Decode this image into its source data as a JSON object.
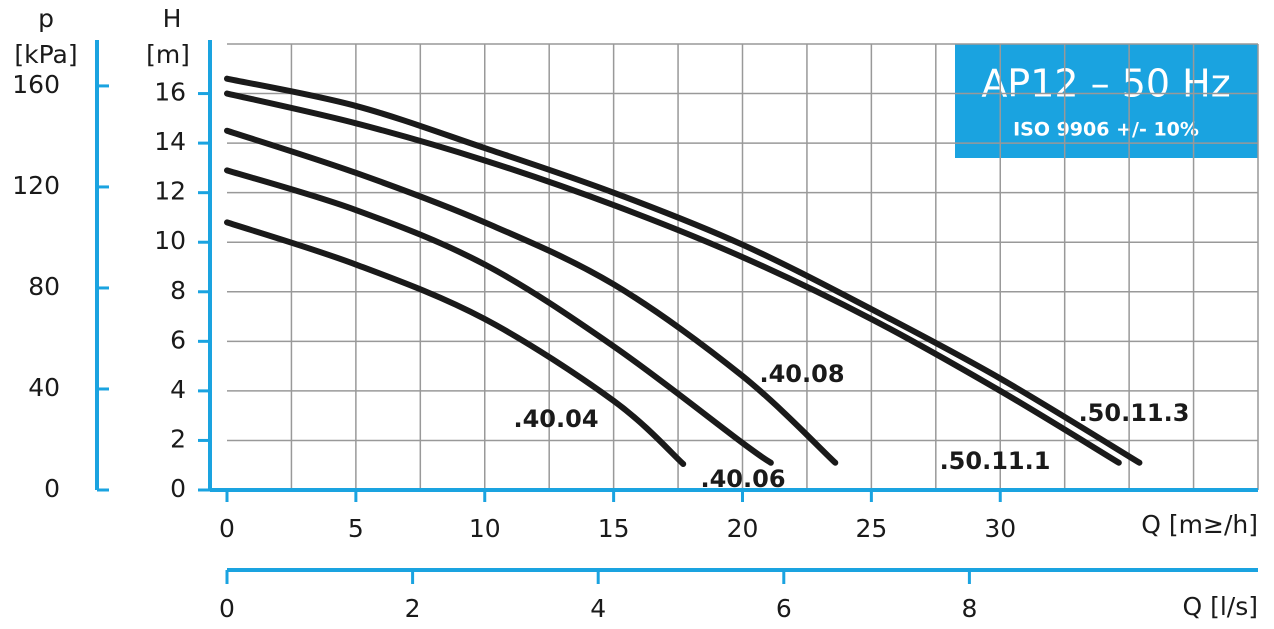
{
  "chart_data": {
    "type": "line",
    "title": "AP12 – 50 Hz",
    "subtitle": "ISO 9906 +/- 10%",
    "ylabel": [
      "H",
      "[m]"
    ],
    "y2label": [
      "p",
      "[kPa]"
    ],
    "xlabel": "Q [m≥/h]",
    "x2label": "Q [l/s]",
    "xlim": [
      0,
      40
    ],
    "xticks": [
      0,
      5,
      10,
      15,
      20,
      25,
      30
    ],
    "xgrid": [
      2.5,
      5,
      7.5,
      10,
      12.5,
      15,
      17.5,
      20,
      22.5,
      25,
      27.5,
      30,
      32.5,
      35,
      37.5
    ],
    "ylim": [
      0,
      18
    ],
    "yticks": [
      0,
      2,
      4,
      6,
      8,
      10,
      12,
      14,
      16
    ],
    "y2lim": [
      0,
      176.6
    ],
    "y2ticks": [
      0,
      40,
      80,
      120,
      160
    ],
    "x2lim": [
      0,
      11.11
    ],
    "x2ticks": [
      0,
      2,
      4,
      6,
      8
    ],
    "axis_color": "#1aa3e0",
    "grid": true,
    "series": [
      {
        "name": ".40.04",
        "color": "#1a1a1a",
        "x": [
          0,
          5,
          10,
          15,
          17.7
        ],
        "values": [
          10.8,
          9.1,
          6.9,
          3.6,
          1.05
        ]
      },
      {
        "name": ".40.06",
        "color": "#1a1a1a",
        "x": [
          0,
          5,
          10,
          15,
          20,
          21.1
        ],
        "values": [
          12.9,
          11.3,
          9.1,
          5.8,
          1.9,
          1.1
        ]
      },
      {
        "name": ".40.08",
        "color": "#1a1a1a",
        "x": [
          0,
          5,
          10,
          15,
          20,
          23.6
        ],
        "values": [
          14.5,
          12.8,
          10.8,
          8.3,
          4.6,
          1.1
        ]
      },
      {
        "name": ".50.11.1",
        "color": "#1a1a1a",
        "x": [
          0,
          5,
          10,
          15,
          20,
          25,
          30,
          34.6
        ],
        "values": [
          16.0,
          14.8,
          13.3,
          11.5,
          9.4,
          6.9,
          4.0,
          1.1
        ]
      },
      {
        "name": ".50.11.3",
        "color": "#1a1a1a",
        "x": [
          0,
          5,
          10,
          15,
          20,
          25,
          30,
          35.4
        ],
        "values": [
          16.6,
          15.5,
          13.8,
          12.0,
          9.9,
          7.3,
          4.5,
          1.1
        ]
      }
    ]
  }
}
